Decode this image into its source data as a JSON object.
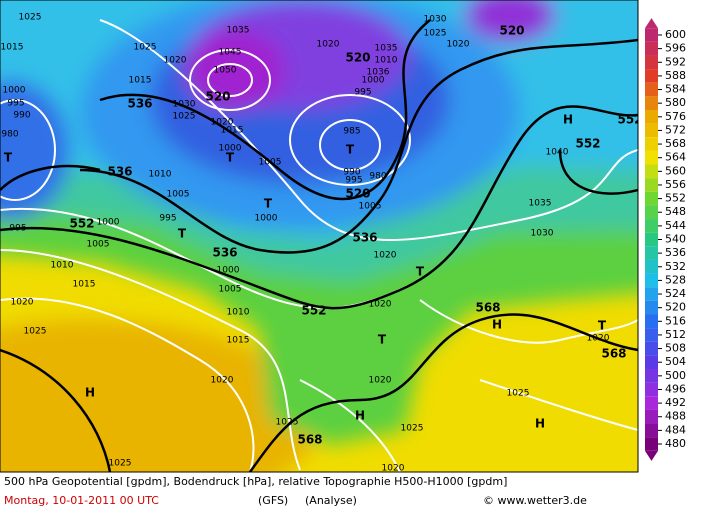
{
  "map": {
    "labels": [
      "1025",
      "1015",
      "1025",
      "1020",
      "1015",
      "536",
      "1000",
      "995",
      "990",
      "980",
      "T",
      "1035",
      "1045",
      "1050",
      "520",
      "1030",
      "1025",
      "1020",
      "1015",
      "1000",
      "T",
      "1005",
      "1010",
      "1005",
      "536",
      "T",
      "1000",
      "995",
      "T",
      "552",
      "1000",
      "995",
      "1005",
      "1010",
      "1015",
      "1020",
      "1025",
      "536",
      "1000",
      "1005",
      "1010",
      "1015",
      "552",
      "1020",
      "H",
      "1025",
      "1020",
      "1030",
      "1025",
      "1020",
      "520",
      "520",
      "1035",
      "1010",
      "1036",
      "1000",
      "995",
      "985",
      "T",
      "990",
      "995",
      "980",
      "520",
      "1005",
      "536",
      "1020",
      "T",
      "1020",
      "T",
      "1020",
      "H",
      "1025",
      "568",
      "1025",
      "H",
      "1040",
      "552",
      "552",
      "1035",
      "1030",
      "568",
      "H",
      "T",
      "1020",
      "568",
      "1025",
      "H",
      "1020"
    ]
  },
  "colorbar": {
    "ticks": [
      600,
      596,
      592,
      588,
      584,
      580,
      576,
      572,
      568,
      564,
      560,
      556,
      552,
      548,
      544,
      540,
      536,
      532,
      528,
      524,
      520,
      516,
      512,
      508,
      504,
      500,
      496,
      492,
      488,
      484,
      480
    ]
  },
  "footer": {
    "description": "500 hPa Geopotential [gpdm], Bodendruck [hPa], relative Topographie H500-H1000 [gpdm]",
    "date": "Montag, 10-01-2011   00 UTC",
    "model": "(GFS)",
    "run": "(Analyse)",
    "credit": "© www.wetter3.de"
  }
}
